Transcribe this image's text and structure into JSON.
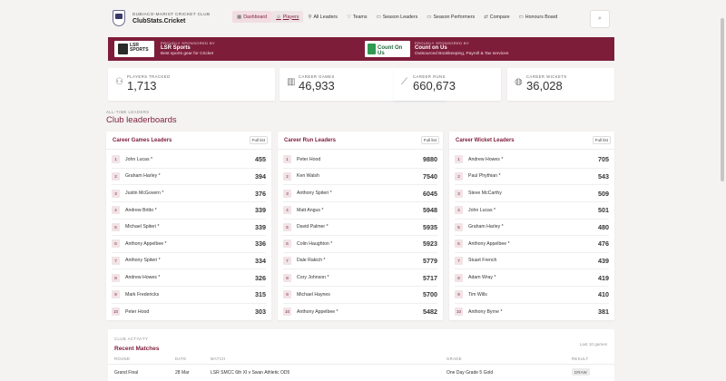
{
  "header": {
    "club_name": "DUBIACO-MARIST CRICKET CLUB",
    "site_name": "ClubStats.Cricket",
    "nav": [
      {
        "label": "Dashboard",
        "icon": "dashboard-icon",
        "glyph": "▦"
      },
      {
        "label": "Players",
        "icon": "players-icon",
        "glyph": "☺"
      },
      {
        "label": "All Leaders",
        "icon": "pin-icon",
        "glyph": "⚲"
      },
      {
        "label": "Teams",
        "icon": "teams-icon",
        "glyph": "♡"
      },
      {
        "label": "Season Leaders",
        "icon": "calendar-icon",
        "glyph": "▭"
      },
      {
        "label": "Season Performers",
        "icon": "performers-icon",
        "glyph": "▭"
      },
      {
        "label": "Compare",
        "icon": "compare-icon",
        "glyph": "⇄"
      },
      {
        "label": "Honours Board",
        "icon": "honours-icon",
        "glyph": "▭"
      }
    ],
    "search_glyph": "⌕"
  },
  "sponsors": [
    {
      "logo_text": "LSR SPORTS",
      "kicker": "PROUDLY SPONSORED BY",
      "name": "LSR Sports",
      "tagline": "Best sports gear for Cricket"
    },
    {
      "logo_text": "Count On Us",
      "kicker": "PROUDLY SPONSORED BY",
      "name": "Count on Us",
      "tagline": "Outsourced Bookkeeping, Payroll & Tax services"
    }
  ],
  "stats": [
    {
      "label": "PLAYERS TRACKED",
      "value": "1,713",
      "icon": "people-icon",
      "glyph": "⚇"
    },
    {
      "label": "CAREER GAMES",
      "value": "46,933",
      "icon": "stumps-icon",
      "glyph": "▥"
    },
    {
      "label": "CAREER RUNS",
      "value": "660,673",
      "icon": "bat-icon",
      "glyph": "⟋"
    },
    {
      "label": "CAREER WICKETS",
      "value": "36,028",
      "icon": "ball-icon",
      "glyph": "◍"
    }
  ],
  "leaderboards": {
    "kicker": "ALL-TIME LEADERS",
    "title": "Club leaderboards",
    "full_list_label": "Full list",
    "boards": [
      {
        "title": "Career Games Leaders",
        "rows": [
          {
            "rank": "1",
            "name": "John Lucas *",
            "value": "455"
          },
          {
            "rank": "2",
            "name": "Graham Harley *",
            "value": "394"
          },
          {
            "rank": "3",
            "name": "Justin McGovern *",
            "value": "376"
          },
          {
            "rank": "4",
            "name": "Andrew Britto *",
            "value": "339"
          },
          {
            "rank": "5",
            "name": "Michael Spiteri *",
            "value": "339"
          },
          {
            "rank": "6",
            "name": "Anthony Appelbee *",
            "value": "336"
          },
          {
            "rank": "7",
            "name": "Anthony Spiteri *",
            "value": "334"
          },
          {
            "rank": "8",
            "name": "Andrew Howes *",
            "value": "326"
          },
          {
            "rank": "9",
            "name": "Mark Fredericks",
            "value": "315"
          },
          {
            "rank": "10",
            "name": "Peter Hood",
            "value": "303"
          }
        ]
      },
      {
        "title": "Career Run Leaders",
        "rows": [
          {
            "rank": "1",
            "name": "Peter Hood",
            "value": "9880"
          },
          {
            "rank": "2",
            "name": "Ken Walsh",
            "value": "7540"
          },
          {
            "rank": "3",
            "name": "Anthony Spiteri *",
            "value": "6045"
          },
          {
            "rank": "4",
            "name": "Matt Angus *",
            "value": "5948"
          },
          {
            "rank": "5",
            "name": "David Palmer *",
            "value": "5935"
          },
          {
            "rank": "6",
            "name": "Colin Haughton *",
            "value": "5923"
          },
          {
            "rank": "7",
            "name": "Dale Rakich *",
            "value": "5779"
          },
          {
            "rank": "8",
            "name": "Cory Johnson *",
            "value": "5717"
          },
          {
            "rank": "9",
            "name": "Michael Haynes",
            "value": "5700"
          },
          {
            "rank": "10",
            "name": "Anthony Appelbee *",
            "value": "5482"
          }
        ]
      },
      {
        "title": "Career Wicket Leaders",
        "rows": [
          {
            "rank": "1",
            "name": "Andrew Howes *",
            "value": "705"
          },
          {
            "rank": "2",
            "name": "Paul Phythian *",
            "value": "543"
          },
          {
            "rank": "3",
            "name": "Steve McCarthy",
            "value": "509"
          },
          {
            "rank": "4",
            "name": "John Lucas *",
            "value": "501"
          },
          {
            "rank": "5",
            "name": "Graham Harley *",
            "value": "480"
          },
          {
            "rank": "6",
            "name": "Anthony Appelbee *",
            "value": "476"
          },
          {
            "rank": "7",
            "name": "Stuart French",
            "value": "439"
          },
          {
            "rank": "8",
            "name": "Adam Wray *",
            "value": "419"
          },
          {
            "rank": "9",
            "name": "Tim Wills",
            "value": "410"
          },
          {
            "rank": "10",
            "name": "Anthony Byrne *",
            "value": "381"
          }
        ]
      }
    ]
  },
  "activity": {
    "kicker": "CLUB ACTIVITY",
    "title": "Recent Matches",
    "subtitle": "Last 10 games",
    "columns": [
      "ROUND",
      "DATE",
      "MATCH",
      "GRADE",
      "RESULT"
    ],
    "rows": [
      {
        "round": "Grand Final",
        "date": "28 Mar",
        "match": "LSR SMCC 6th XI v Swan Athletic OD5",
        "grade": "One Day Grade 5 Gold",
        "result": "DRAW"
      }
    ]
  },
  "colors": {
    "accent": "#7e1d3a",
    "background": "#f4f3f2"
  }
}
